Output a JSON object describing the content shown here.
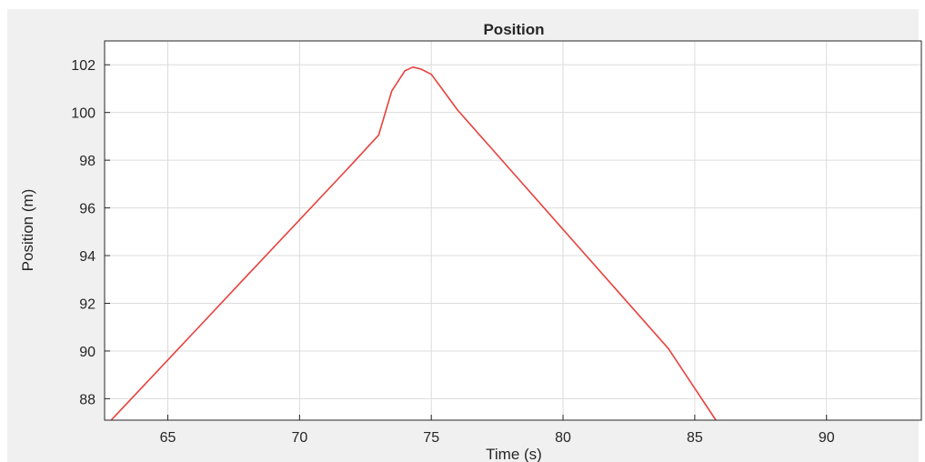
{
  "chart_data": {
    "type": "line",
    "title": "Position",
    "xlabel": "Time (s)",
    "ylabel": "Position (m)",
    "xlim": [
      62.6,
      93.6
    ],
    "ylim": [
      87.1,
      103.0
    ],
    "xticks": [
      65,
      70,
      75,
      80,
      85,
      90
    ],
    "yticks": [
      88,
      90,
      92,
      94,
      96,
      98,
      100,
      102
    ],
    "grid": true,
    "series": [
      {
        "color": "#e8413c",
        "x": [
          62.85,
          64.0,
          66.0,
          68.0,
          70.0,
          72.0,
          73.0,
          73.5,
          74.0,
          74.3,
          74.6,
          75.0,
          75.5,
          76.0,
          78.0,
          80.0,
          82.0,
          84.0,
          85.8
        ],
        "y": [
          87.1,
          88.45,
          90.8,
          93.15,
          95.5,
          97.85,
          99.05,
          100.9,
          101.75,
          101.9,
          101.82,
          101.6,
          100.85,
          100.1,
          97.6,
          95.1,
          92.6,
          90.1,
          87.1
        ]
      }
    ]
  }
}
